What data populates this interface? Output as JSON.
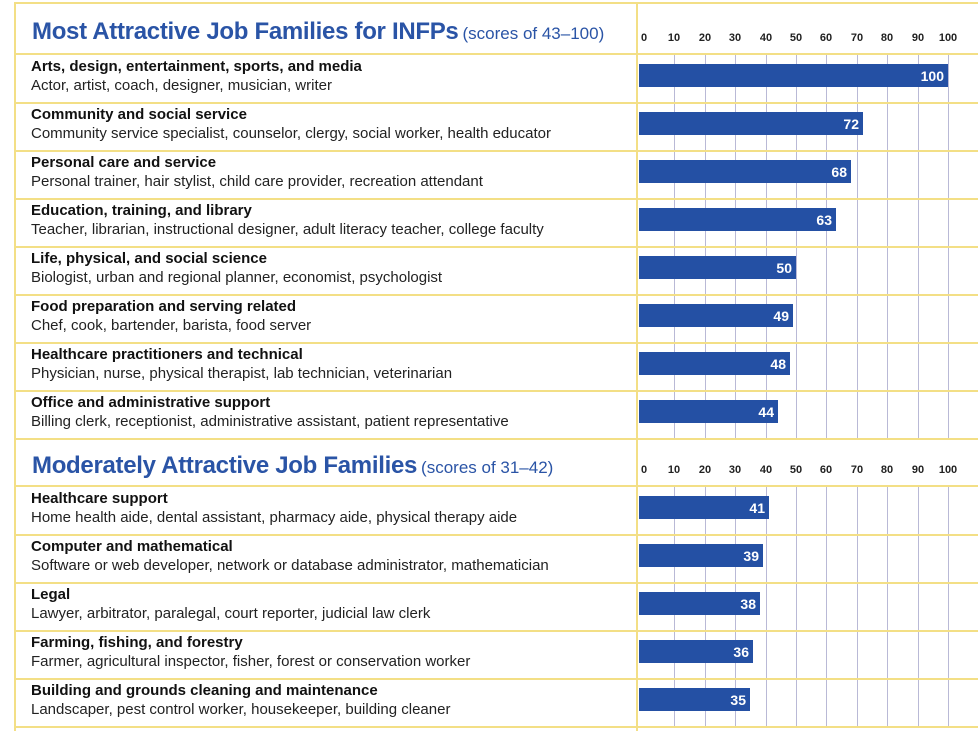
{
  "colors": {
    "bar": "#2450a4",
    "title": "#2a54a6",
    "rule": "#f3df86",
    "grid": "#b9b9d6"
  },
  "sections": [
    {
      "title": "Most Attractive Job Families for INFPs",
      "subtitle": "(scores of 43–100)"
    },
    {
      "title": "Moderately Attractive Job Families",
      "subtitle": "(scores of 31–42)"
    }
  ],
  "ticks": [
    "0",
    "10",
    "20",
    "30",
    "40",
    "50",
    "60",
    "70",
    "80",
    "90",
    "100"
  ],
  "chart_data": {
    "type": "bar",
    "orientation": "horizontal",
    "xlim": [
      0,
      100
    ],
    "grid": true,
    "sections": [
      {
        "title": "Most Attractive Job Families for INFPs",
        "subtitle": "(scores of 43–100)",
        "rows": [
          {
            "category": "Arts, design, entertainment, sports, and media",
            "examples": "Actor, artist, coach, designer, musician, writer",
            "value": 100
          },
          {
            "category": "Community and social service",
            "examples": "Community service specialist, counselor, clergy, social worker, health educator",
            "value": 72
          },
          {
            "category": "Personal care and service",
            "examples": "Personal trainer, hair stylist, child care provider, recreation attendant",
            "value": 68
          },
          {
            "category": "Education, training, and library",
            "examples": "Teacher, librarian, instructional designer, adult literacy teacher, college faculty",
            "value": 63
          },
          {
            "category": "Life, physical, and social science",
            "examples": "Biologist, urban and regional planner, economist, psychologist",
            "value": 50
          },
          {
            "category": "Food preparation and serving related",
            "examples": "Chef, cook, bartender, barista, food server",
            "value": 49
          },
          {
            "category": "Healthcare practitioners and technical",
            "examples": "Physician, nurse, physical therapist, lab technician, veterinarian",
            "value": 48
          },
          {
            "category": "Office and administrative support",
            "examples": "Billing clerk, receptionist, administrative assistant, patient representative",
            "value": 44
          }
        ]
      },
      {
        "title": "Moderately Attractive Job Families",
        "subtitle": "(scores of 31–42)",
        "rows": [
          {
            "category": "Healthcare support",
            "examples": "Home health aide, dental assistant, pharmacy aide, physical therapy aide",
            "value": 41
          },
          {
            "category": "Computer and mathematical",
            "examples": "Software or web developer, network or database administrator, mathematician",
            "value": 39
          },
          {
            "category": "Legal",
            "examples": "Lawyer, arbitrator, paralegal, court reporter, judicial law clerk",
            "value": 38
          },
          {
            "category": "Farming, fishing, and forestry",
            "examples": "Farmer, agricultural inspector, fisher, forest or conservation worker",
            "value": 36
          },
          {
            "category": "Building and grounds cleaning and maintenance",
            "examples": "Landscaper, pest control worker, housekeeper, building cleaner",
            "value": 35
          }
        ]
      }
    ]
  }
}
